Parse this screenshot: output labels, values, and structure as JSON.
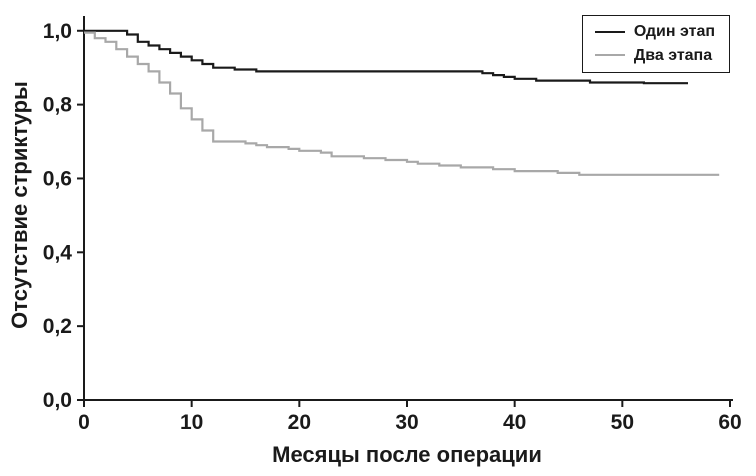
{
  "chart_data": {
    "type": "line",
    "subtype": "kaplan-meier-step",
    "title": "",
    "xlabel": "Месяцы после операции",
    "ylabel": "Отсутствие стриктуры",
    "xlim": [
      0,
      60
    ],
    "ylim": [
      0.0,
      1.0
    ],
    "grid": false,
    "legend_position": "top-right",
    "xticks": {
      "values": [
        0,
        10,
        20,
        30,
        40,
        50,
        60
      ],
      "labels": [
        "0",
        "10",
        "20",
        "30",
        "40",
        "50",
        "60"
      ]
    },
    "yticks": {
      "values": [
        0,
        0.2,
        0.4,
        0.6,
        0.8,
        1.0
      ],
      "labels": [
        "0,0",
        "0,2",
        "0,4",
        "0,6",
        "0,8",
        "1,0"
      ]
    },
    "series": [
      {
        "name": "Один этап",
        "color": "#1a1a1a",
        "x": [
          0,
          4,
          5,
          6,
          7,
          8,
          9,
          10,
          11,
          12,
          14,
          16,
          37,
          38,
          39,
          40,
          42,
          47,
          52,
          56
        ],
        "y": [
          1.0,
          0.99,
          0.97,
          0.96,
          0.95,
          0.94,
          0.93,
          0.92,
          0.91,
          0.9,
          0.895,
          0.89,
          0.885,
          0.88,
          0.875,
          0.87,
          0.865,
          0.86,
          0.858,
          0.855
        ]
      },
      {
        "name": "Два этапа",
        "color": "#a8a8a8",
        "x": [
          0,
          1,
          2,
          3,
          4,
          5,
          6,
          7,
          8,
          9,
          10,
          11,
          12,
          15,
          16,
          17,
          19,
          20,
          22,
          23,
          26,
          28,
          30,
          31,
          33,
          35,
          38,
          40,
          44,
          46,
          59
        ],
        "y": [
          0.995,
          0.98,
          0.97,
          0.95,
          0.93,
          0.91,
          0.89,
          0.86,
          0.83,
          0.79,
          0.76,
          0.73,
          0.7,
          0.695,
          0.69,
          0.685,
          0.68,
          0.675,
          0.67,
          0.66,
          0.655,
          0.65,
          0.645,
          0.64,
          0.635,
          0.63,
          0.625,
          0.62,
          0.615,
          0.61,
          0.61
        ]
      }
    ]
  },
  "colors": {
    "background": "#ffffff",
    "axis": "#1a1a1a",
    "text": "#1a1a1a"
  }
}
